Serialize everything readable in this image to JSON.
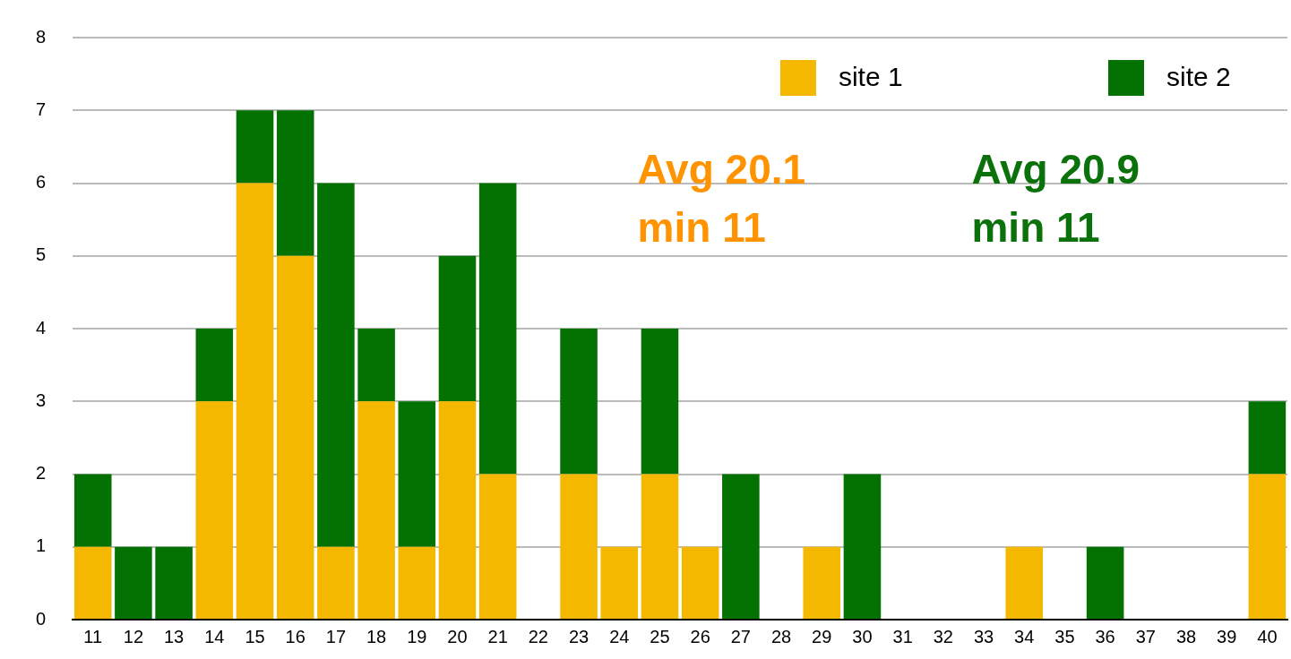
{
  "chart_data": {
    "type": "bar",
    "stacked": true,
    "categories": [
      "11",
      "12",
      "13",
      "14",
      "15",
      "16",
      "17",
      "18",
      "19",
      "20",
      "21",
      "22",
      "23",
      "24",
      "25",
      "26",
      "27",
      "28",
      "29",
      "30",
      "31",
      "32",
      "33",
      "34",
      "35",
      "36",
      "37",
      "38",
      "39",
      "40"
    ],
    "series": [
      {
        "name": "site 1",
        "color": "#f5b800",
        "values": [
          1,
          0,
          0,
          3,
          6,
          5,
          1,
          3,
          1,
          3,
          2,
          0,
          2,
          1,
          2,
          1,
          0,
          0,
          1,
          0,
          0,
          0,
          0,
          1,
          0,
          0,
          0,
          0,
          0,
          2
        ]
      },
      {
        "name": "site 2",
        "color": "#037203",
        "values": [
          1,
          1,
          1,
          1,
          1,
          2,
          5,
          1,
          2,
          2,
          4,
          0,
          2,
          0,
          2,
          0,
          2,
          0,
          0,
          2,
          0,
          0,
          0,
          0,
          0,
          1,
          0,
          0,
          0,
          1
        ]
      }
    ],
    "ylim": [
      0,
      8
    ],
    "yticks": [
      0,
      1,
      2,
      3,
      4,
      5,
      6,
      7,
      8
    ],
    "grid": "y",
    "legend": "top right",
    "annotations": [
      "Avg 20.1",
      "min 11",
      "Avg 20.9",
      "min 11"
    ]
  }
}
